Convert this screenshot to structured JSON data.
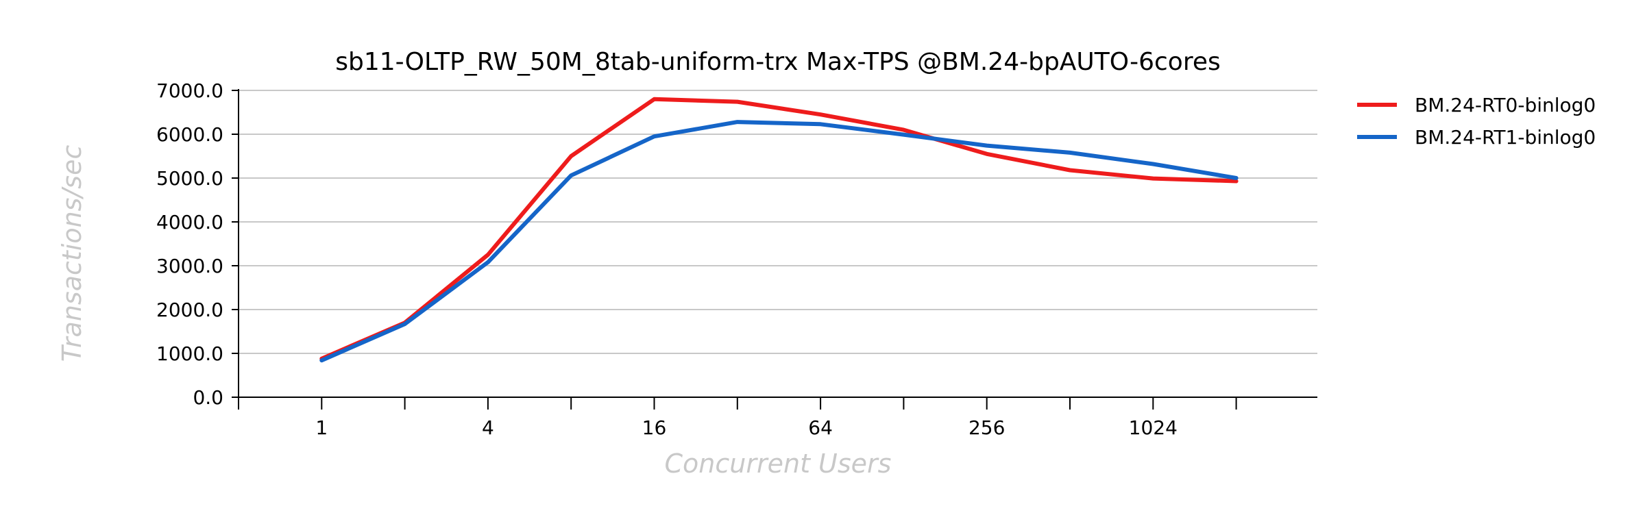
{
  "chart_data": {
    "type": "line",
    "title": "sb11-OLTP_RW_50M_8tab-uniform-trx Max-TPS @BM.24-bpAUTO-6cores",
    "xlabel": "Concurrent Users",
    "ylabel": "Transactions/sec",
    "x_scale": "log2",
    "x": [
      1,
      2,
      4,
      8,
      16,
      32,
      64,
      128,
      256,
      512,
      1024,
      2048
    ],
    "x_tick_values": [
      1,
      4,
      16,
      64,
      256,
      1024
    ],
    "x_tick_labels": [
      "1",
      "4",
      "16",
      "64",
      "256",
      "1024"
    ],
    "xlim": [
      0.5,
      5000
    ],
    "ylim": [
      0,
      7000
    ],
    "y_ticks": [
      0,
      1000,
      2000,
      3000,
      4000,
      5000,
      6000,
      7000
    ],
    "y_tick_labels": [
      "0.0",
      "1000.0",
      "2000.0",
      "3000.0",
      "4000.0",
      "5000.0",
      "6000.0",
      "7000.0"
    ],
    "grid": "horizontal",
    "legend_position": "right",
    "series": [
      {
        "name": "BM.24-RT0-binlog0",
        "color": "#ee1c1c",
        "values": [
          880,
          1700,
          3250,
          5500,
          6800,
          6740,
          6450,
          6100,
          5550,
          5180,
          4990,
          4930
        ]
      },
      {
        "name": "BM.24-RT1-binlog0",
        "color": "#1565c8",
        "values": [
          840,
          1670,
          3080,
          5060,
          5950,
          6280,
          6230,
          5990,
          5740,
          5580,
          5320,
          5000
        ]
      }
    ]
  }
}
